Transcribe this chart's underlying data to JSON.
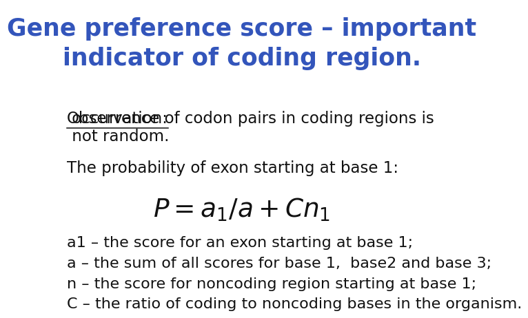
{
  "title_line1": "Gene preference score – important",
  "title_line2": "indicator of coding region.",
  "title_color": "#3355bb",
  "title_fontsize": 25,
  "body_fontsize": 16.5,
  "body_color": "#111111",
  "background_color": "#ffffff",
  "observation_keyword": "Observation:",
  "observation_rest": " occurrence of codon pairs in coding regions is\n not random.",
  "prob_text": "The probability of exon starting at base 1:",
  "formula": "$P = a_{1} / a + Cn_{1}$",
  "formula_fontsize": 27,
  "bullet1": "a1 – the score for an exon starting at base 1;",
  "bullet2": "a – the sum of all scores for base 1,  base2 and base 3;",
  "bullet3": "n – the score for noncoding region starting at base 1;",
  "bullet4": "C – the ratio of coding to noncoding bases in the organism."
}
